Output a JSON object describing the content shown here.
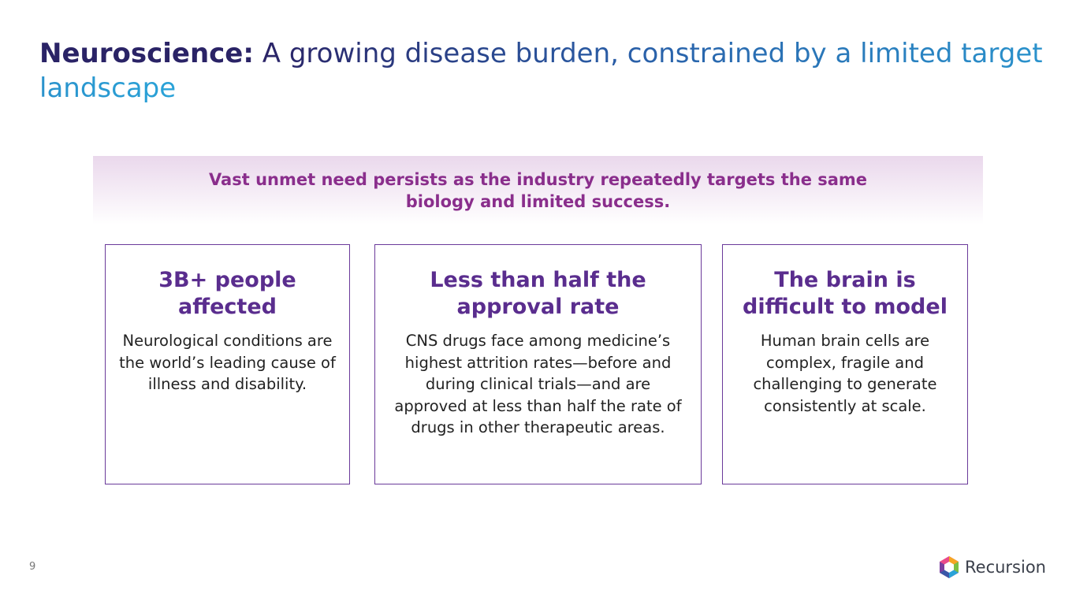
{
  "header": {
    "title_bold": "Neuroscience:",
    "title_rest": "A growing disease burden, constrained by a limited target landscape"
  },
  "banner": {
    "text": "Vast unmet need persists as the industry repeatedly targets the same biology and limited success."
  },
  "cards": [
    {
      "heading": "3B+ people affected",
      "body": "Neurological conditions are the world’s leading cause of illness and disability."
    },
    {
      "heading": "Less than half the approval rate",
      "body": "CNS drugs face among medicine’s highest attrition rates—before and during clinical trials—and are approved at less than half the rate of drugs in other therapeutic areas."
    },
    {
      "heading": "The brain is difficult to model",
      "body": "Human brain cells are complex, fragile and challenging to generate consistently at scale."
    }
  ],
  "footer": {
    "page_number": "9",
    "logo": "Recursion"
  }
}
